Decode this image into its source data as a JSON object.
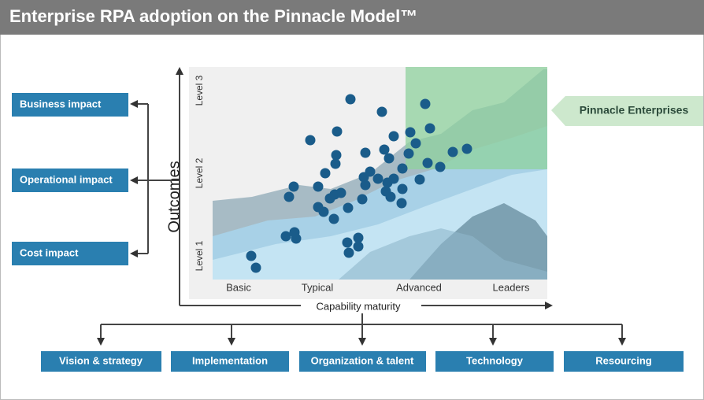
{
  "header": {
    "title": "Enterprise RPA adoption on the Pinnacle Model™"
  },
  "impact_boxes": [
    "Business impact",
    "Operational impact",
    "Cost impact"
  ],
  "y_axis": {
    "label": "Outcomes",
    "levels": [
      "Level 1",
      "Level 2",
      "Level 3"
    ]
  },
  "x_axis": {
    "label": "Capability maturity",
    "levels": [
      "Basic",
      "Typical",
      "Advanced",
      "Leaders"
    ]
  },
  "callout": "Pinnacle Enterprises",
  "capability_boxes": [
    "Vision & strategy",
    "Implementation",
    "Organization & talent",
    "Technology",
    "Resourcing"
  ]
}
